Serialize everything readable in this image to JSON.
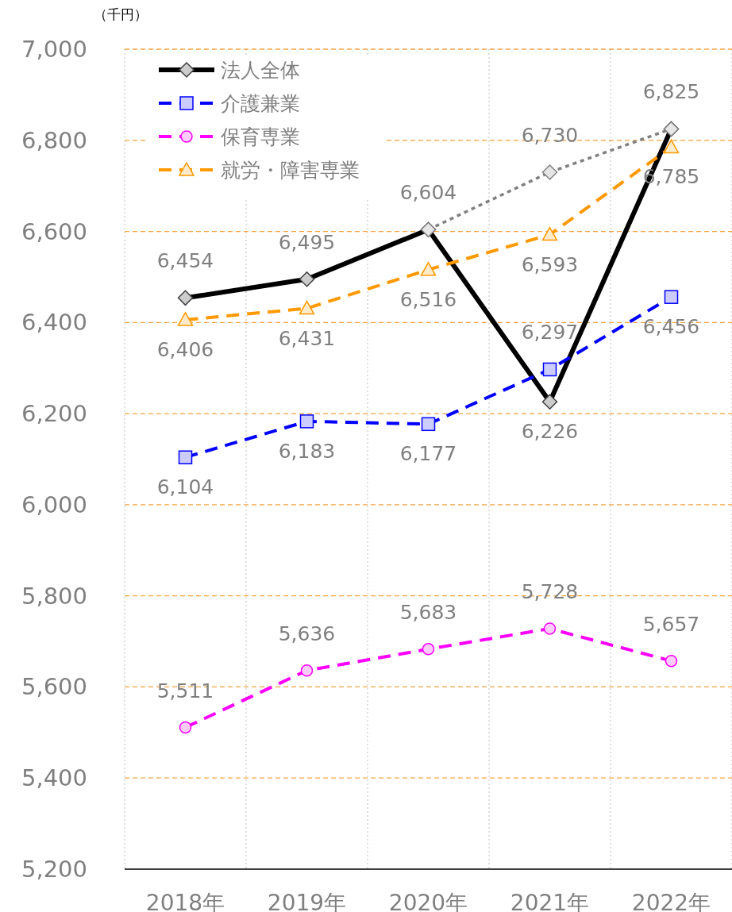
{
  "chart_data": {
    "type": "line",
    "ylabel": "（千円）",
    "categories": [
      "2018年",
      "2019年",
      "2020年",
      "2021年",
      "2022年"
    ],
    "ylim": [
      5200,
      7000
    ],
    "yticks": [
      {
        "value": 5200,
        "label": "5,200"
      },
      {
        "value": 5400,
        "label": "5,400"
      },
      {
        "value": 5600,
        "label": "5,600"
      },
      {
        "value": 5800,
        "label": "5,800"
      },
      {
        "value": 6000,
        "label": "6,000"
      },
      {
        "value": 6200,
        "label": "6,200"
      },
      {
        "value": 6400,
        "label": "6,400"
      },
      {
        "value": 6600,
        "label": "6,600"
      },
      {
        "value": 6800,
        "label": "6,800"
      },
      {
        "value": 7000,
        "label": "7,000"
      }
    ],
    "grid": true,
    "legend": "top left",
    "series": [
      {
        "name": "法人全体",
        "color": "#000000",
        "marker": "diamond",
        "line_style": "solid",
        "values": [
          6454,
          6495,
          6604,
          6226,
          6825
        ],
        "value_labels": [
          "6,454",
          "6,495",
          "6,604",
          "6,226",
          "6,825"
        ]
      },
      {
        "name": "介護兼業",
        "color": "#0000ff",
        "marker": "square",
        "line_style": "dashed",
        "values": [
          6104,
          6183,
          6177,
          6297,
          6456
        ],
        "value_labels": [
          "6,104",
          "6,183",
          "6,177",
          "6,297",
          "6,456"
        ]
      },
      {
        "name": "保育専業",
        "color": "#ff00ff",
        "marker": "circle",
        "line_style": "dashed",
        "values": [
          5511,
          5636,
          5683,
          5728,
          5657
        ],
        "value_labels": [
          "5,511",
          "5,636",
          "5,683",
          "5,728",
          "5,657"
        ]
      },
      {
        "name": "就労・障害専業",
        "color": "#ff9900",
        "marker": "triangle",
        "line_style": "dashed",
        "values": [
          6406,
          6431,
          6516,
          6593,
          6785
        ],
        "value_labels": [
          "6,406",
          "6,431",
          "6,516",
          "6,593",
          "6,785"
        ]
      },
      {
        "color": "#808080",
        "marker": "diamond",
        "line_style": "dotted",
        "values": [
          null,
          null,
          6604,
          6730,
          6825
        ],
        "value_labels": [
          null,
          null,
          null,
          "6,730",
          null
        ]
      }
    ]
  }
}
